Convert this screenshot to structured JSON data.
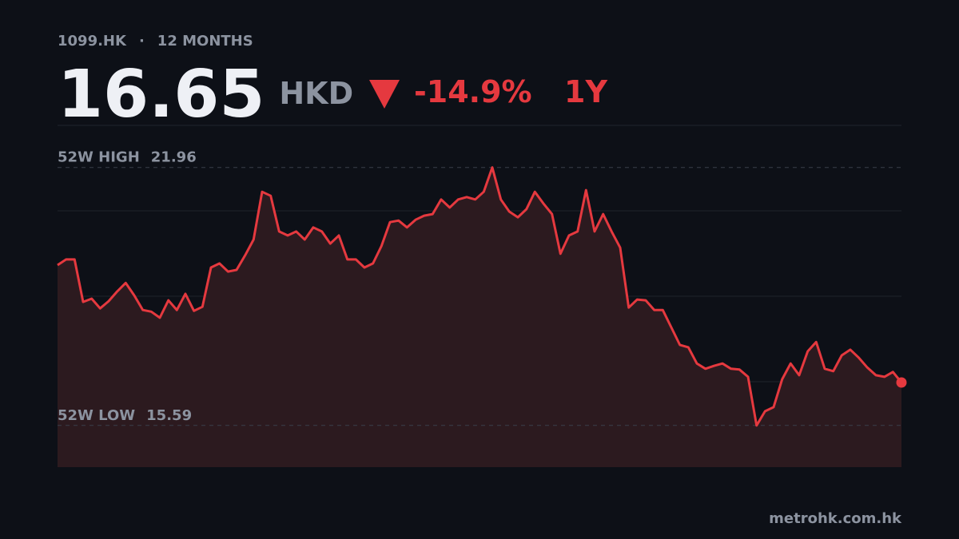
{
  "header": {
    "ticker": "1099.HK",
    "period": "12 MONTHS",
    "price": 16.65,
    "currency": "HKD",
    "change": "-14.9%",
    "range": "1Y"
  },
  "chart_data": {
    "type": "line",
    "color": "#e5393f",
    "fill": "#2c1a1f",
    "ylim": [
      14.56,
      23.0
    ],
    "high": {
      "label": "52W HIGH",
      "value": 21.96
    },
    "low": {
      "label": "52W LOW",
      "value": 15.59
    },
    "values": [
      19.55,
      19.69,
      19.69,
      18.64,
      18.72,
      18.48,
      18.66,
      18.9,
      19.11,
      18.8,
      18.44,
      18.4,
      18.25,
      18.68,
      18.44,
      18.84,
      18.42,
      18.52,
      19.49,
      19.59,
      19.39,
      19.43,
      19.79,
      20.18,
      21.36,
      21.26,
      20.38,
      20.28,
      20.38,
      20.18,
      20.48,
      20.38,
      20.08,
      20.28,
      19.69,
      19.69,
      19.49,
      19.59,
      20.02,
      20.61,
      20.65,
      20.48,
      20.67,
      20.77,
      20.81,
      21.17,
      20.97,
      21.17,
      21.23,
      21.17,
      21.36,
      21.96,
      21.17,
      20.87,
      20.73,
      20.93,
      21.36,
      21.07,
      20.81,
      19.83,
      20.28,
      20.38,
      21.4,
      20.38,
      20.81,
      20.38,
      19.98,
      18.5,
      18.7,
      18.68,
      18.44,
      18.44,
      18.01,
      17.58,
      17.52,
      17.12,
      16.99,
      17.06,
      17.12,
      16.99,
      16.97,
      16.79,
      15.59,
      15.94,
      16.04,
      16.73,
      17.12,
      16.83,
      17.42,
      17.65,
      16.99,
      16.93,
      17.32,
      17.46,
      17.26,
      17.02,
      16.83,
      16.79,
      16.91,
      16.65
    ]
  },
  "footer": {
    "source": "metrohk.com.hk"
  }
}
